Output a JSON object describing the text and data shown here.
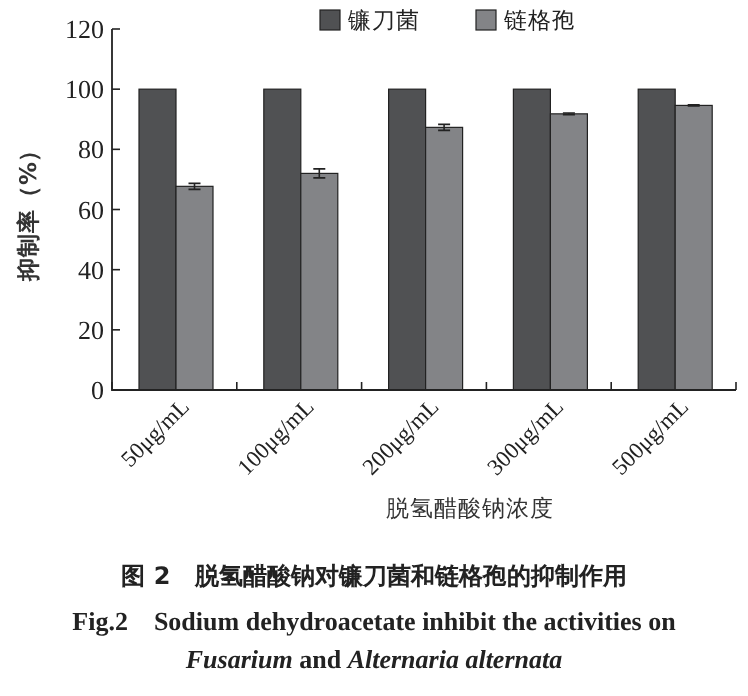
{
  "chart_data": {
    "type": "bar",
    "title": "图 2　脱氢醋酸钠对镰刀菌和链格孢的抑制作用",
    "subtitle": "Fig.2　Sodium dehydroacetate inhibit the activities on *Fusarium* and *Alternaria alternata*",
    "xlabel": "脱氢醋酸钠浓度",
    "ylabel": "抑制率（%）",
    "categories": [
      "50μg/mL",
      "100μg/mL",
      "200μg/mL",
      "300μg/mL",
      "500μg/mL"
    ],
    "series": [
      {
        "name": "镰刀菌",
        "color": "#505153",
        "values": [
          100,
          100,
          100,
          100,
          100
        ]
      },
      {
        "name": "链格孢",
        "color": "#838487",
        "values": [
          67.7,
          72,
          87.3,
          91.8,
          94.6
        ],
        "errors": [
          1,
          1.5,
          1,
          0.3,
          0.2
        ]
      }
    ],
    "ylim": [
      0,
      120
    ],
    "yticks": [
      0,
      20,
      40,
      60,
      80,
      100,
      120
    ],
    "legend": "top right"
  }
}
